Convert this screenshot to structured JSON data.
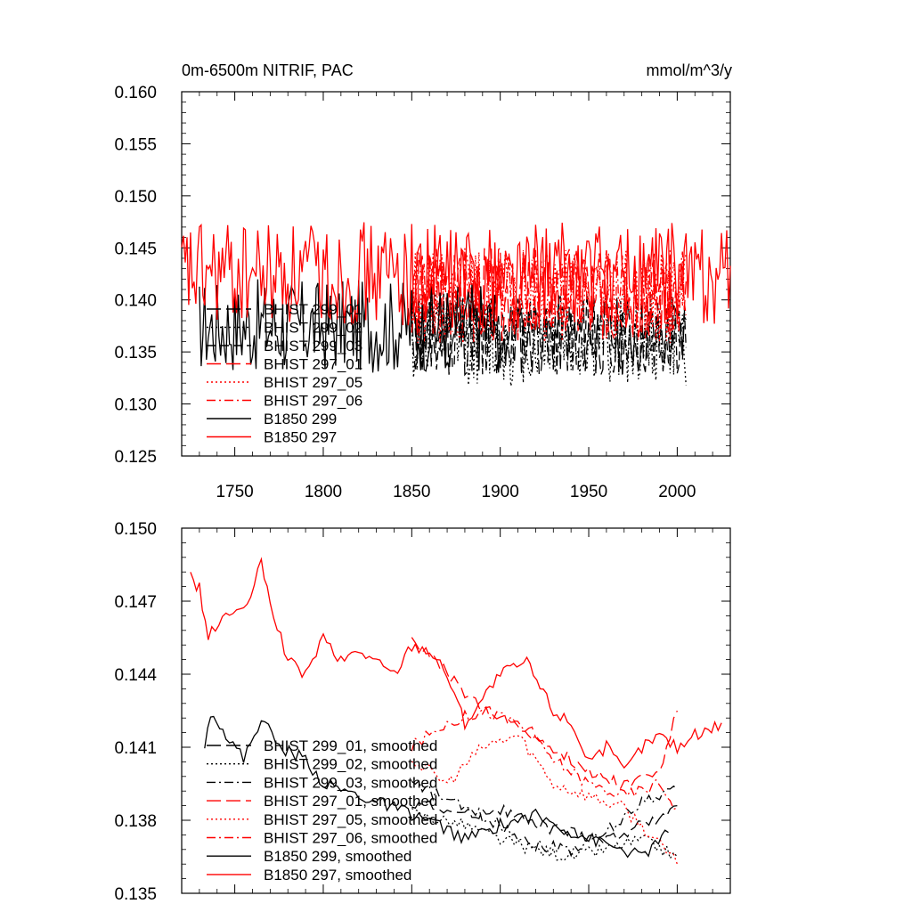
{
  "chart_data": [
    {
      "type": "line",
      "title_left": "0m-6500m NITRIF, PAC",
      "title_right": "mmol/m^3/y",
      "xlabel": "",
      "ylabel": "",
      "xlim": [
        1720,
        2030
      ],
      "ylim": [
        0.125,
        0.16
      ],
      "yticks": [
        "0.125",
        "0.130",
        "0.135",
        "0.140",
        "0.145",
        "0.150",
        "0.155",
        "0.160"
      ],
      "xticks": [
        "1750",
        "1800",
        "1850",
        "1900",
        "1950",
        "2000"
      ],
      "legend_position": "lower-left",
      "series": [
        {
          "name": "BHIST 299_01",
          "color": "#000000",
          "dash": "long-dash",
          "x_range": [
            1850,
            2005
          ],
          "mean": 0.1365,
          "amplitude": 0.004,
          "seed": 11
        },
        {
          "name": "BHIST 299_02",
          "color": "#000000",
          "dash": "dotted",
          "x_range": [
            1850,
            2005
          ],
          "mean": 0.1362,
          "amplitude": 0.0045,
          "seed": 12
        },
        {
          "name": "BHIST 299_03",
          "color": "#000000",
          "dash": "dash",
          "x_range": [
            1850,
            2005
          ],
          "mean": 0.1368,
          "amplitude": 0.004,
          "seed": 13
        },
        {
          "name": "BHIST 297_01",
          "color": "#ff0000",
          "dash": "long-dash",
          "x_range": [
            1850,
            2005
          ],
          "mean": 0.1405,
          "amplitude": 0.0045,
          "seed": 14
        },
        {
          "name": "BHIST 297_05",
          "color": "#ff0000",
          "dash": "dotted",
          "x_range": [
            1850,
            2005
          ],
          "mean": 0.1403,
          "amplitude": 0.0045,
          "seed": 15
        },
        {
          "name": "BHIST 297_06",
          "color": "#ff0000",
          "dash": "dash-dot",
          "x_range": [
            1850,
            2005
          ],
          "mean": 0.1406,
          "amplitude": 0.0045,
          "seed": 16
        },
        {
          "name": "B1850 299",
          "color": "#000000",
          "dash": "solid",
          "x_range": [
            1730,
            1900
          ],
          "mean": 0.1375,
          "amplitude": 0.0045,
          "seed": 17
        },
        {
          "name": "B1850 297",
          "color": "#ff0000",
          "dash": "solid",
          "x_range": [
            1720,
            2030
          ],
          "mean": 0.1425,
          "amplitude": 0.005,
          "seed": 18
        }
      ]
    },
    {
      "type": "line",
      "title_left": "",
      "title_right": "",
      "xlabel": "",
      "ylabel": "",
      "xlim": [
        1720,
        2030
      ],
      "ylim": [
        0.135,
        0.15
      ],
      "yticks": [
        "0.135",
        "0.138",
        "0.141",
        "0.144",
        "0.147",
        "0.150"
      ],
      "legend_position": "lower-left",
      "series": [
        {
          "name": "BHIST 299_01, smoothed",
          "color": "#000000",
          "dash": "long-dash",
          "x": [
            1850,
            1880,
            1900,
            1920,
            1940,
            1960,
            1980,
            2000
          ],
          "y": [
            0.1388,
            0.1382,
            0.1385,
            0.1378,
            0.1375,
            0.1372,
            0.1378,
            0.1386
          ]
        },
        {
          "name": "BHIST 299_02, smoothed",
          "color": "#000000",
          "dash": "dotted",
          "x": [
            1850,
            1880,
            1900,
            1920,
            1940,
            1960,
            1980,
            2000
          ],
          "y": [
            0.1383,
            0.1378,
            0.1372,
            0.1368,
            0.1365,
            0.1368,
            0.1372,
            0.1365
          ]
        },
        {
          "name": "BHIST 299_03, smoothed",
          "color": "#000000",
          "dash": "dash-dot",
          "x": [
            1850,
            1880,
            1900,
            1920,
            1940,
            1960,
            1980,
            2000
          ],
          "y": [
            0.1395,
            0.1385,
            0.1378,
            0.137,
            0.1368,
            0.1375,
            0.1388,
            0.1393
          ]
        },
        {
          "name": "BHIST 297_01, smoothed",
          "color": "#ff0000",
          "dash": "long-dash",
          "x": [
            1850,
            1870,
            1890,
            1910,
            1930,
            1950,
            1970,
            1990,
            2000
          ],
          "y": [
            0.1455,
            0.144,
            0.1425,
            0.142,
            0.141,
            0.14,
            0.1395,
            0.14,
            0.1425
          ]
        },
        {
          "name": "BHIST 297_05, smoothed",
          "color": "#ff0000",
          "dash": "dotted",
          "x": [
            1850,
            1870,
            1890,
            1910,
            1930,
            1950,
            1970,
            1990,
            2000
          ],
          "y": [
            0.1405,
            0.1395,
            0.141,
            0.1415,
            0.1395,
            0.139,
            0.1385,
            0.137,
            0.1362
          ]
        },
        {
          "name": "BHIST 297_06, smoothed",
          "color": "#ff0000",
          "dash": "dash-dot",
          "x": [
            1850,
            1870,
            1890,
            1910,
            1930,
            1950,
            1970,
            1990,
            2000
          ],
          "y": [
            0.141,
            0.142,
            0.1425,
            0.142,
            0.1405,
            0.1395,
            0.139,
            0.1395,
            0.1385
          ]
        },
        {
          "name": "B1850 299, smoothed",
          "color": "#000000",
          "dash": "solid",
          "x": [
            1733,
            1738,
            1745,
            1755,
            1765,
            1775,
            1790,
            1800,
            1820,
            1840,
            1860,
            1880,
            1900,
            1920,
            1940,
            1960,
            1980,
            1995
          ],
          "y": [
            0.1412,
            0.1425,
            0.1415,
            0.1405,
            0.1422,
            0.141,
            0.1405,
            0.1395,
            0.139,
            0.1385,
            0.138,
            0.1372,
            0.1378,
            0.1382,
            0.1375,
            0.137,
            0.1365,
            0.1375
          ]
        },
        {
          "name": "B1850 297, smoothed",
          "color": "#ff0000",
          "dash": "solid",
          "x": [
            1725,
            1730,
            1735,
            1745,
            1755,
            1765,
            1770,
            1780,
            1790,
            1800,
            1810,
            1820,
            1840,
            1850,
            1860,
            1870,
            1880,
            1900,
            1915,
            1930,
            1940,
            1950,
            1960,
            1970,
            1980,
            1990,
            2000,
            2010,
            2025
          ],
          "y": [
            0.148,
            0.1475,
            0.1455,
            0.1465,
            0.1465,
            0.1485,
            0.147,
            0.1445,
            0.144,
            0.1455,
            0.1445,
            0.145,
            0.144,
            0.1452,
            0.145,
            0.144,
            0.142,
            0.144,
            0.1445,
            0.1425,
            0.142,
            0.1405,
            0.141,
            0.14,
            0.141,
            0.1415,
            0.141,
            0.1415,
            0.142
          ]
        }
      ]
    }
  ]
}
